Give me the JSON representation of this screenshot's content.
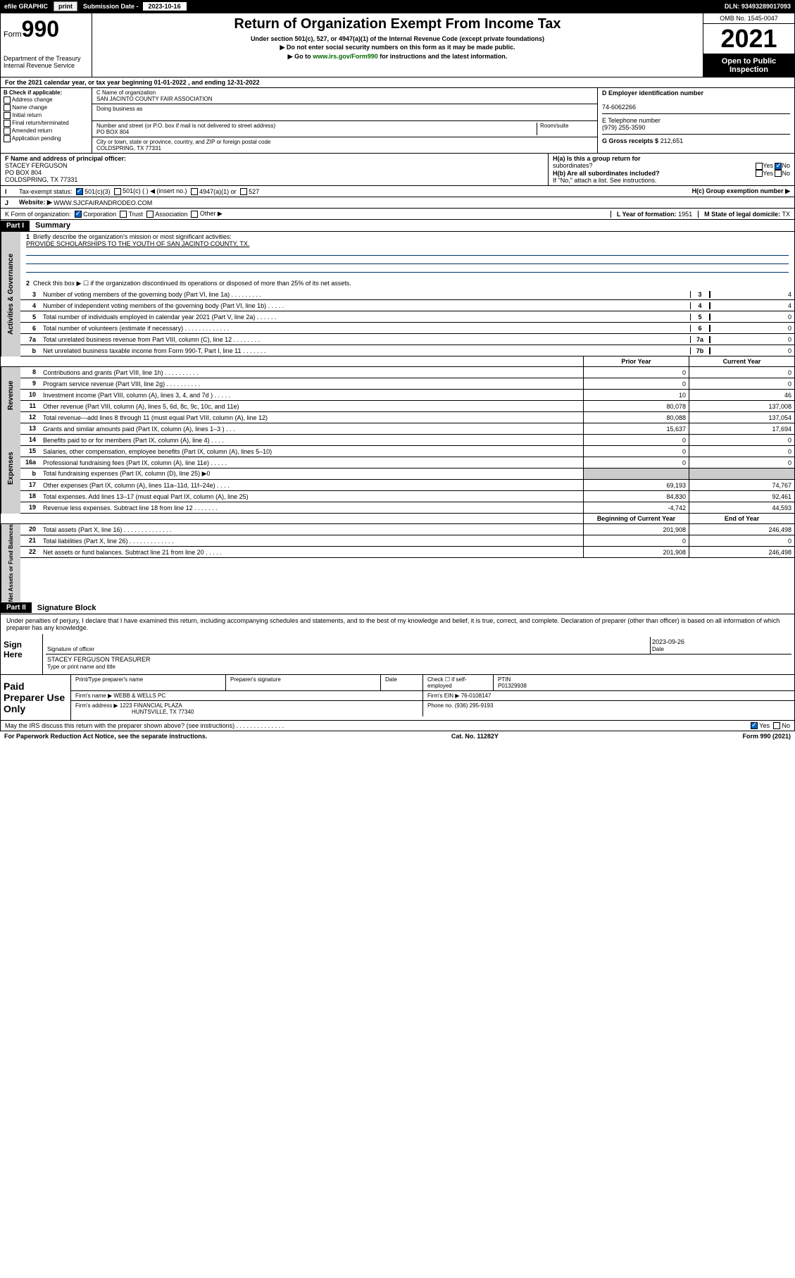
{
  "topbar": {
    "efile": "efile GRAPHIC",
    "print": "print",
    "subLabel": "Submission Date -",
    "subDate": "2023-10-16",
    "dln": "DLN: 93493289017093"
  },
  "hdr": {
    "form": "Form",
    "num": "990",
    "dept": "Department of the Treasury",
    "irs": "Internal Revenue Service",
    "title": "Return of Organization Exempt From Income Tax",
    "sub1": "Under section 501(c), 527, or 4947(a)(1) of the Internal Revenue Code (except private foundations)",
    "sub2": "▶ Do not enter social security numbers on this form as it may be made public.",
    "sub3": "▶ Go to ",
    "link": "www.irs.gov/Form990",
    "sub3b": " for instructions and the latest information.",
    "omb": "OMB No. 1545-0047",
    "year": "2021",
    "pub": "Open to Public Inspection"
  },
  "A": {
    "text": "For the 2021 calendar year, or tax year beginning 01-01-2022   , and ending 12-31-2022"
  },
  "B": {
    "hdr": "B Check if applicable:",
    "items": [
      "Address change",
      "Name change",
      "Initial return",
      "Final return/terminated",
      "Amended return",
      "Application pending"
    ]
  },
  "C": {
    "nameL": "C Name of organization",
    "name": "SAN JACINTO COUNTY FAIR ASSOCIATION",
    "dbaL": "Doing business as",
    "addrL": "Number and street (or P.O. box if mail is not delivered to street address)",
    "room": "Room/suite",
    "addr": "PO BOX 804",
    "cityL": "City or town, state or province, country, and ZIP or foreign postal code",
    "city": "COLDSPRING, TX   77331"
  },
  "D": {
    "label": "D Employer identification number",
    "val": "74-6062266"
  },
  "E": {
    "label": "E Telephone number",
    "val": "(979) 255-3590"
  },
  "G": {
    "label": "G Gross receipts $",
    "val": "212,651"
  },
  "F": {
    "label": "F  Name and address of principal officer:",
    "name": "STACEY FERGUSON",
    "addr": "PO BOX 804",
    "city": "COLDSPRING, TX   77331"
  },
  "H": {
    "aL": "H(a)  Is this a group return for",
    "aL2": "subordinates?",
    "bL": "H(b)  Are all subordinates included?",
    "bN": "If \"No,\" attach a list. See instructions.",
    "cL": "H(c)  Group exemption number ▶"
  },
  "I": {
    "label": "Tax-exempt status:",
    "o1": "501(c)(3)",
    "o2": "501(c) (   ) ◀ (insert no.)",
    "o3": "4947(a)(1) or",
    "o4": "527"
  },
  "J": {
    "label": "Website: ▶",
    "val": "WWW.SJCFAIRANDRODEO.COM"
  },
  "K": {
    "label": "K Form of organization:",
    "o1": "Corporation",
    "o2": "Trust",
    "o3": "Association",
    "o4": "Other ▶"
  },
  "L": {
    "label": "L Year of formation:",
    "val": "1951"
  },
  "M": {
    "label": "M State of legal domicile:",
    "val": "TX"
  },
  "p1": {
    "part": "Part I",
    "title": "Summary"
  },
  "s1": {
    "l1": "Briefly describe the organization's mission or most significant activities:",
    "mission": "PROVIDE SCHOLARSHIPS TO THE YOUTH OF SAN JACINTO COUNTY, TX.",
    "l2": "Check this box ▶ ☐  if the organization discontinued its operations or disposed of more than 25% of its net assets.",
    "rows": [
      {
        "n": "3",
        "t": "Number of voting members of the governing body (Part VI, line 1a)   .    .    .    .    .    .    .    .    .",
        "nc": "3",
        "v": "4"
      },
      {
        "n": "4",
        "t": "Number of independent voting members of the governing body (Part VI, line 1b)  .    .    .    .    .",
        "nc": "4",
        "v": "4"
      },
      {
        "n": "5",
        "t": "Total number of individuals employed in calendar year 2021 (Part V, line 2a)   .    .    .    .    .    .",
        "nc": "5",
        "v": "0"
      },
      {
        "n": "6",
        "t": "Total number of volunteers (estimate if necessary)   .    .    .    .    .    .    .    .    .    .    .    .    .",
        "nc": "6",
        "v": "0"
      },
      {
        "n": "7a",
        "t": "Total unrelated business revenue from Part VIII, column (C), line 12  .    .    .    .    .    .    .    .",
        "nc": "7a",
        "v": "0"
      },
      {
        "n": "b",
        "t": "Net unrelated business taxable income from Form 990-T, Part I, line 11   .    .    .    .    .    .    .",
        "nc": "7b",
        "v": "0"
      }
    ]
  },
  "colhdr": {
    "py": "Prior Year",
    "cy": "Current Year",
    "bcy": "Beginning of Current Year",
    "eoy": "End of Year"
  },
  "rev": {
    "label": "Revenue",
    "rows": [
      {
        "n": "8",
        "t": "Contributions and grants (Part VIII, line 1h)   .    .    .    .    .    .    .    .    .    .",
        "v1": "0",
        "v2": "0"
      },
      {
        "n": "9",
        "t": "Program service revenue (Part VIII, line 2g)   .    .    .    .    .    .    .    .    .    .",
        "v1": "0",
        "v2": "0"
      },
      {
        "n": "10",
        "t": "Investment income (Part VIII, column (A), lines 3, 4, and 7d )   .    .    .    .    .",
        "v1": "10",
        "v2": "46"
      },
      {
        "n": "11",
        "t": "Other revenue (Part VIII, column (A), lines 5, 6d, 8c, 9c, 10c, and 11e)",
        "v1": "80,078",
        "v2": "137,008"
      },
      {
        "n": "12",
        "t": "Total revenue—add lines 8 through 11 (must equal Part VIII, column (A), line 12)",
        "v1": "80,088",
        "v2": "137,054"
      }
    ]
  },
  "exp": {
    "label": "Expenses",
    "rows": [
      {
        "n": "13",
        "t": "Grants and similar amounts paid (Part IX, column (A), lines 1–3 )    .    .    .",
        "v1": "15,637",
        "v2": "17,694"
      },
      {
        "n": "14",
        "t": "Benefits paid to or for members (Part IX, column (A), line 4)   .    .    .    .",
        "v1": "0",
        "v2": "0"
      },
      {
        "n": "15",
        "t": "Salaries, other compensation, employee benefits (Part IX, column (A), lines 5–10)",
        "v1": "0",
        "v2": "0"
      },
      {
        "n": "16a",
        "t": "Professional fundraising fees (Part IX, column (A), line 11e)   .    .    .    .    .",
        "v1": "0",
        "v2": "0"
      },
      {
        "n": "b",
        "t": "Total fundraising expenses (Part IX, column (D), line 25) ▶0",
        "shade": true
      },
      {
        "n": "17",
        "t": "Other expenses (Part IX, column (A), lines 11a–11d, 11f–24e)   .    .    .    .",
        "v1": "69,193",
        "v2": "74,767"
      },
      {
        "n": "18",
        "t": "Total expenses. Add lines 13–17 (must equal Part IX, column (A), line 25)",
        "v1": "84,830",
        "v2": "92,461"
      },
      {
        "n": "19",
        "t": "Revenue less expenses. Subtract line 18 from line 12  .    .    .    .    .    .    .",
        "v1": "-4,742",
        "v2": "44,593"
      }
    ]
  },
  "na": {
    "label": "Net Assets or Fund Balances",
    "rows": [
      {
        "n": "20",
        "t": "Total assets (Part X, line 16)   .    .    .    .    .    .    .    .    .    .    .    .    .    .",
        "v1": "201,908",
        "v2": "246,498"
      },
      {
        "n": "21",
        "t": "Total liabilities (Part X, line 26)   .    .    .    .    .    .    .    .    .    .    .    .    .",
        "v1": "0",
        "v2": "0"
      },
      {
        "n": "22",
        "t": "Net assets or fund balances. Subtract line 21 from line 20  .    .    .    .    .",
        "v1": "201,908",
        "v2": "246,498"
      }
    ]
  },
  "p2": {
    "part": "Part II",
    "title": "Signature Block"
  },
  "sig": {
    "decl": "Under penalties of perjury, I declare that I have examined this return, including accompanying schedules and statements, and to the best of my knowledge and belief, it is true, correct, and complete. Declaration of preparer (other than officer) is based on all information of which preparer has any knowledge.",
    "here": "Sign Here",
    "sigoff": "Signature of officer",
    "date": "2023-09-26",
    "dateL": "Date",
    "name": "STACEY FERGUSON  TREASURER",
    "nameL": "Type or print name and title",
    "paid": "Paid Preparer Use Only",
    "pp": {
      "nameL": "Print/Type preparer's name",
      "sigL": "Preparer's signature",
      "dateL": "Date",
      "checkL": "Check ☐ if self-employed",
      "ptinL": "PTIN",
      "ptin": "P01329938",
      "firmN": "Firm's name   ▶",
      "firm": "WEBB & WELLS PC",
      "einL": "Firm's EIN ▶",
      "ein": "76-0108147",
      "addrL": "Firm's address ▶",
      "addr": "1223 FINANCIAL PLAZA",
      "city": "HUNTSVILLE, TX   77340",
      "phL": "Phone no.",
      "ph": "(936) 295-9193"
    },
    "may": "May the IRS discuss this return with the preparer shown above? (see instructions)    .    .    .    .    .    .    .    .    .    .    .    .    .    .",
    "yes": "Yes",
    "no": "No"
  },
  "ftr": {
    "pra": "For Paperwork Reduction Act Notice, see the separate instructions.",
    "cat": "Cat. No. 11282Y",
    "form": "Form 990 (2021)"
  }
}
